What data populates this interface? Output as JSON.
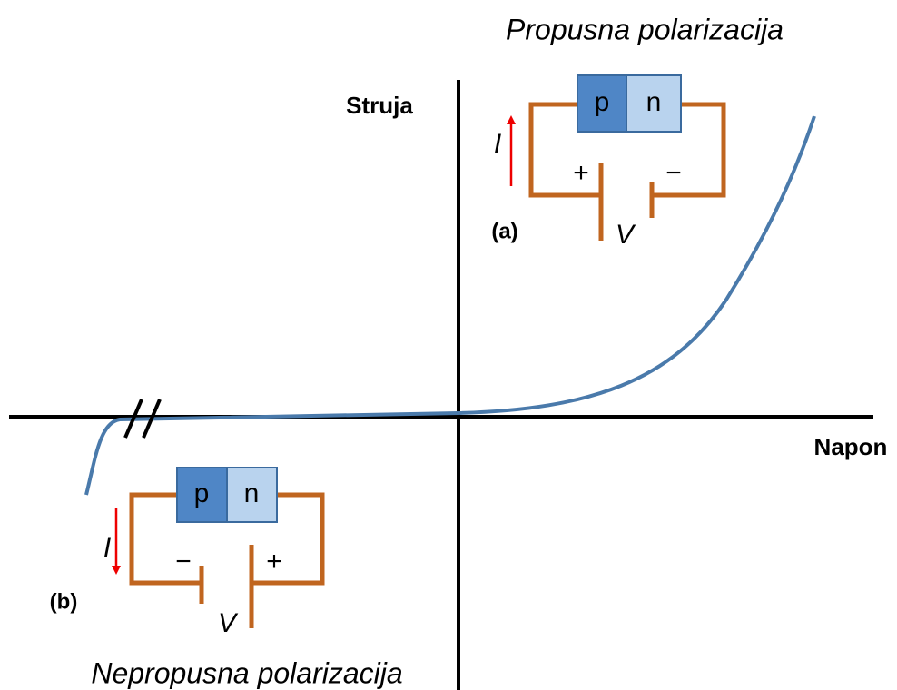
{
  "forward_title": "Propusna polarizacija",
  "reverse_title": "Nepropusna polarizacija",
  "axes": {
    "y_label": "Struja",
    "x_label": "Napon"
  },
  "circuits": [
    {
      "label": "(a)",
      "p": "p",
      "n": "n",
      "current": "I",
      "voltage": "V",
      "plus": "+",
      "minus": "−"
    },
    {
      "label": "(b)",
      "p": "p",
      "n": "n",
      "current": "I",
      "voltage": "V",
      "plus": "+",
      "minus": "−"
    }
  ]
}
